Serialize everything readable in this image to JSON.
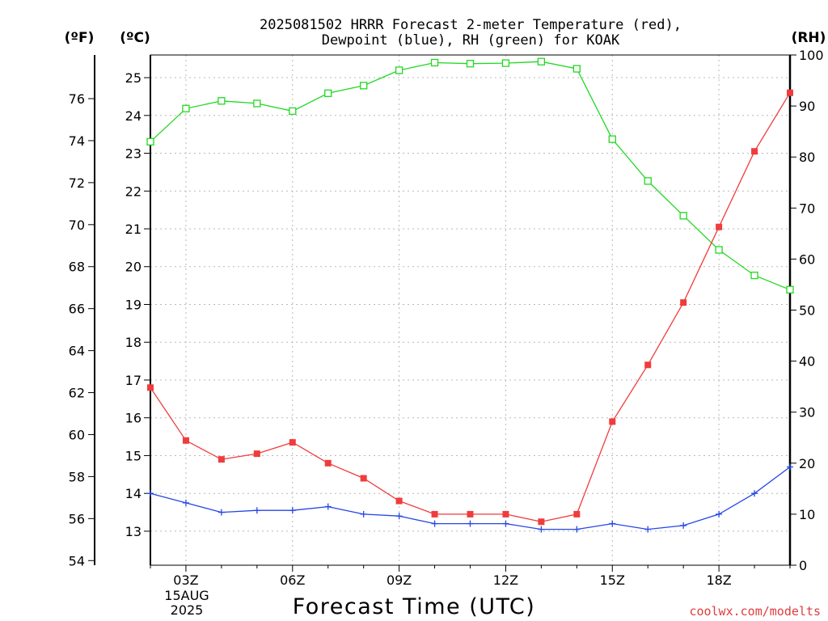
{
  "title_line1": "2025081502 HRRR Forecast 2-meter Temperature (red),",
  "title_line2": "Dewpoint (blue), RH (green) for KOAK",
  "unit_f": "(ºF)",
  "unit_c": "(ºC)",
  "unit_rh": "(RH)",
  "xlabel": "Forecast Time (UTC)",
  "date_line1": "15AUG",
  "date_line2": "2025",
  "watermark": "coolwx.com/modelts",
  "colors": {
    "temperature": "#f03c3c",
    "dewpoint": "#2646e6",
    "rh": "#22d822",
    "watermark": "#e03c3c",
    "grid": "#b8b8b8"
  },
  "chart_data": {
    "type": "line",
    "x": [
      2,
      3,
      4,
      5,
      6,
      7,
      8,
      9,
      10,
      11,
      12,
      13,
      14,
      15,
      16,
      17,
      18,
      19,
      20
    ],
    "x_unit": "forecast hour UTC",
    "xlim": [
      2,
      20
    ],
    "x_ticks": [
      3,
      6,
      9,
      12,
      15,
      18
    ],
    "x_tick_labels": [
      "03Z",
      "06Z",
      "09Z",
      "12Z",
      "15Z",
      "18Z"
    ],
    "y_left_celsius": {
      "lim": [
        12.1,
        25.6
      ],
      "ticks": [
        13,
        14,
        15,
        16,
        17,
        18,
        19,
        20,
        21,
        22,
        23,
        24,
        25
      ]
    },
    "y_left_fahrenheit": {
      "ticks": [
        54,
        56,
        58,
        60,
        62,
        64,
        66,
        68,
        70,
        72,
        74,
        76
      ]
    },
    "y_right_rh": {
      "lim": [
        0,
        100
      ],
      "ticks": [
        0,
        10,
        20,
        30,
        40,
        50,
        60,
        70,
        80,
        90,
        100
      ]
    },
    "grid": true,
    "series": [
      {
        "key": "temperature",
        "axis": "celsius",
        "marker": "filled-square",
        "values": [
          16.8,
          15.4,
          14.9,
          15.05,
          15.35,
          14.8,
          14.4,
          13.8,
          13.45,
          13.45,
          13.45,
          13.25,
          13.45,
          15.9,
          17.4,
          19.05,
          21.05,
          23.05,
          24.6
        ]
      },
      {
        "key": "dewpoint",
        "axis": "celsius",
        "marker": "plus",
        "values": [
          14.0,
          13.75,
          13.5,
          13.55,
          13.55,
          13.65,
          13.45,
          13.4,
          13.2,
          13.2,
          13.2,
          13.05,
          13.05,
          13.2,
          13.05,
          13.15,
          13.45,
          14.0,
          14.7
        ]
      },
      {
        "key": "rh",
        "axis": "rh",
        "marker": "open-square",
        "values": [
          83,
          89.5,
          91,
          90.5,
          89,
          92.5,
          94,
          97,
          98.5,
          98.3,
          98.4,
          98.7,
          97.3,
          83.5,
          75.3,
          68.5,
          61.8,
          56.8,
          54
        ]
      }
    ]
  }
}
